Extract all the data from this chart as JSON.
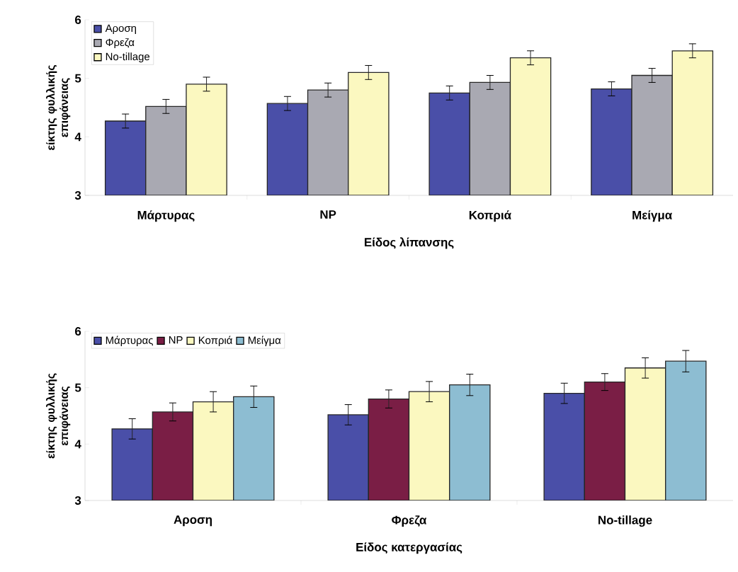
{
  "chart_data": [
    {
      "type": "bar",
      "xlabel": "Είδος λίπανσης",
      "ylabel": "είκτης φυλλικής επιφάνειας",
      "categories": [
        "Μάρτυρας",
        "NP",
        "Κοπριά",
        "Μείγμα"
      ],
      "series": [
        {
          "name": "Αροση",
          "color": "#4a4fa8",
          "values": [
            4.27,
            4.57,
            4.75,
            4.82
          ],
          "errors": [
            0.12,
            0.12,
            0.12,
            0.12
          ]
        },
        {
          "name": "Φρεζα",
          "color": "#a9a9b2",
          "values": [
            4.52,
            4.8,
            4.93,
            5.05
          ],
          "errors": [
            0.12,
            0.12,
            0.12,
            0.12
          ]
        },
        {
          "name": "No-tillage",
          "color": "#fbf8c0",
          "values": [
            4.9,
            5.1,
            5.35,
            5.47
          ],
          "errors": [
            0.12,
            0.12,
            0.12,
            0.12
          ]
        }
      ],
      "ylim": [
        3,
        6
      ],
      "yticks": [
        3,
        4,
        5,
        6
      ],
      "legend": "top left"
    },
    {
      "type": "bar",
      "xlabel": "Είδος κατεργασίας",
      "ylabel": "είκτης φυλλικής επιφάνειας",
      "categories": [
        "Αροση",
        "Φρεζα",
        "No-tillage"
      ],
      "series": [
        {
          "name": "Μάρτυρας",
          "color": "#4a4fa8",
          "values": [
            4.27,
            4.52,
            4.9
          ],
          "errors": [
            0.18,
            0.18,
            0.18
          ]
        },
        {
          "name": "NP",
          "color": "#7a1e45",
          "values": [
            4.57,
            4.8,
            5.1
          ],
          "errors": [
            0.16,
            0.16,
            0.15
          ]
        },
        {
          "name": "Κοπριά",
          "color": "#fbf8c0",
          "values": [
            4.75,
            4.93,
            5.35
          ],
          "errors": [
            0.18,
            0.18,
            0.18
          ]
        },
        {
          "name": "Μείγμα",
          "color": "#8dbdd2",
          "values": [
            4.84,
            5.05,
            5.47
          ],
          "errors": [
            0.19,
            0.19,
            0.19
          ]
        }
      ],
      "ylim": [
        3,
        6
      ],
      "yticks": [
        3,
        4,
        5,
        6
      ],
      "legend": "top left"
    }
  ]
}
